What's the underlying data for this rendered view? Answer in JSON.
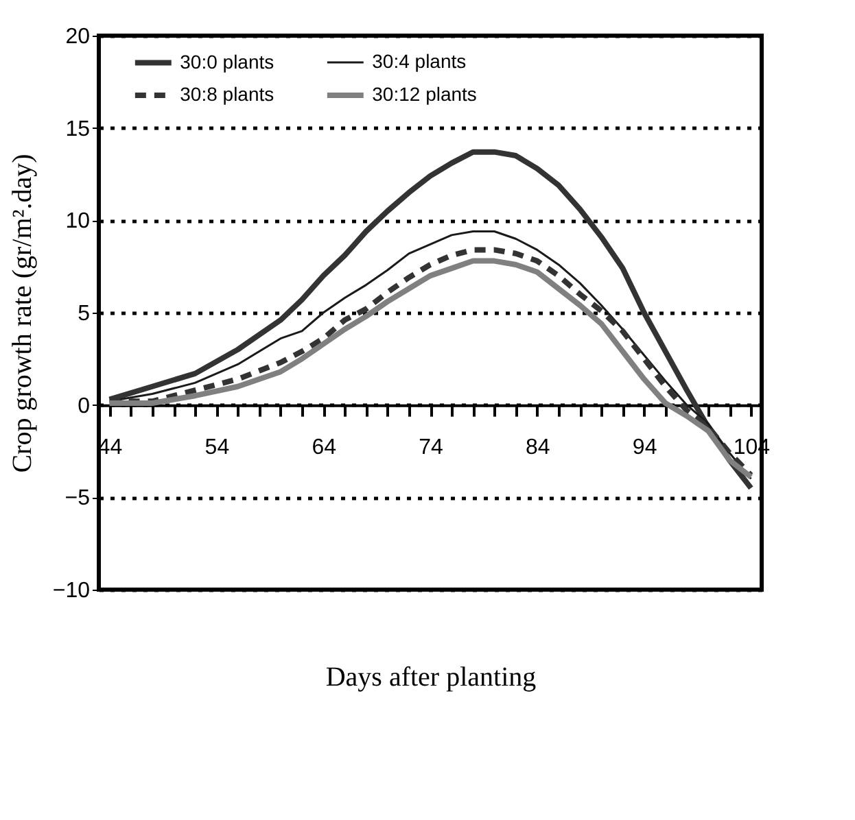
{
  "chart_data": {
    "type": "line",
    "xlabel": "Days after planting",
    "ylabel": "Crop growth rate (gr/m².day)",
    "x": [
      44,
      48,
      52,
      56,
      60,
      62,
      64,
      66,
      68,
      70,
      72,
      74,
      76,
      78,
      80,
      82,
      84,
      86,
      88,
      90,
      92,
      94,
      96,
      98,
      100,
      102,
      104
    ],
    "series": [
      {
        "name": "30:0 plants",
        "color": "#333333",
        "line_style": "solid",
        "values": [
          0.3,
          1.0,
          1.7,
          3.0,
          4.6,
          5.7,
          7.0,
          8.1,
          9.4,
          10.5,
          11.5,
          12.4,
          13.1,
          13.7,
          13.7,
          13.5,
          12.8,
          11.9,
          10.6,
          9.1,
          7.4,
          5.0,
          2.9,
          0.8,
          -1.2,
          -3.0,
          -4.5
        ]
      },
      {
        "name": "30:4 plants",
        "color": "#1a1a1a",
        "line_style": "solid",
        "values": [
          0.2,
          0.6,
          1.2,
          2.2,
          3.6,
          4.0,
          5.0,
          5.8,
          6.5,
          7.3,
          8.2,
          8.7,
          9.2,
          9.4,
          9.4,
          9.0,
          8.4,
          7.6,
          6.6,
          5.4,
          4.1,
          2.7,
          1.3,
          0.0,
          -1.0,
          -2.6,
          -4.0
        ]
      },
      {
        "name": "30:8 plants",
        "color": "#333333",
        "line_style": "dashed",
        "values": [
          0.2,
          0.2,
          0.8,
          1.4,
          2.3,
          2.9,
          3.6,
          4.6,
          5.2,
          6.1,
          6.9,
          7.6,
          8.1,
          8.4,
          8.4,
          8.2,
          7.8,
          7.0,
          6.0,
          5.1,
          4.0,
          2.5,
          1.0,
          -0.3,
          -1.2,
          -2.6,
          -3.8
        ]
      },
      {
        "name": "30:12 plants",
        "color": "#808080",
        "line_style": "solid",
        "values": [
          0.1,
          0.1,
          0.5,
          1.0,
          1.8,
          2.5,
          3.3,
          4.1,
          4.8,
          5.6,
          6.3,
          7.0,
          7.4,
          7.8,
          7.8,
          7.6,
          7.2,
          6.3,
          5.4,
          4.4,
          2.9,
          1.4,
          0.1,
          -0.6,
          -1.4,
          -3.0,
          -3.9
        ]
      }
    ],
    "xlim": [
      43,
      105
    ],
    "xticks": [
      44,
      {
        "value": 46,
        "label": null
      },
      {
        "value": 48,
        "label": null
      },
      {
        "value": 50,
        "label": null
      },
      {
        "value": 52,
        "label": null
      },
      54,
      {
        "value": 56,
        "label": null
      },
      {
        "value": 58,
        "label": null
      },
      {
        "value": 60,
        "label": null
      },
      {
        "value": 62,
        "label": null
      },
      64,
      {
        "value": 66,
        "label": null
      },
      {
        "value": 68,
        "label": null
      },
      {
        "value": 70,
        "label": null
      },
      {
        "value": 72,
        "label": null
      },
      74,
      {
        "value": 76,
        "label": null
      },
      {
        "value": 78,
        "label": null
      },
      {
        "value": 80,
        "label": null
      },
      {
        "value": 82,
        "label": null
      },
      84,
      {
        "value": 86,
        "label": null
      },
      {
        "value": 88,
        "label": null
      },
      {
        "value": 90,
        "label": null
      },
      {
        "value": 92,
        "label": null
      },
      94,
      {
        "value": 96,
        "label": null
      },
      {
        "value": 98,
        "label": null
      },
      {
        "value": 100,
        "label": null
      },
      {
        "value": 102,
        "label": null
      },
      104
    ],
    "ylim": [
      -10,
      20
    ],
    "yticks": [
      -10,
      -5,
      0,
      5,
      10,
      15,
      20
    ],
    "grid": "y",
    "legend": "top",
    "marker": "none"
  }
}
